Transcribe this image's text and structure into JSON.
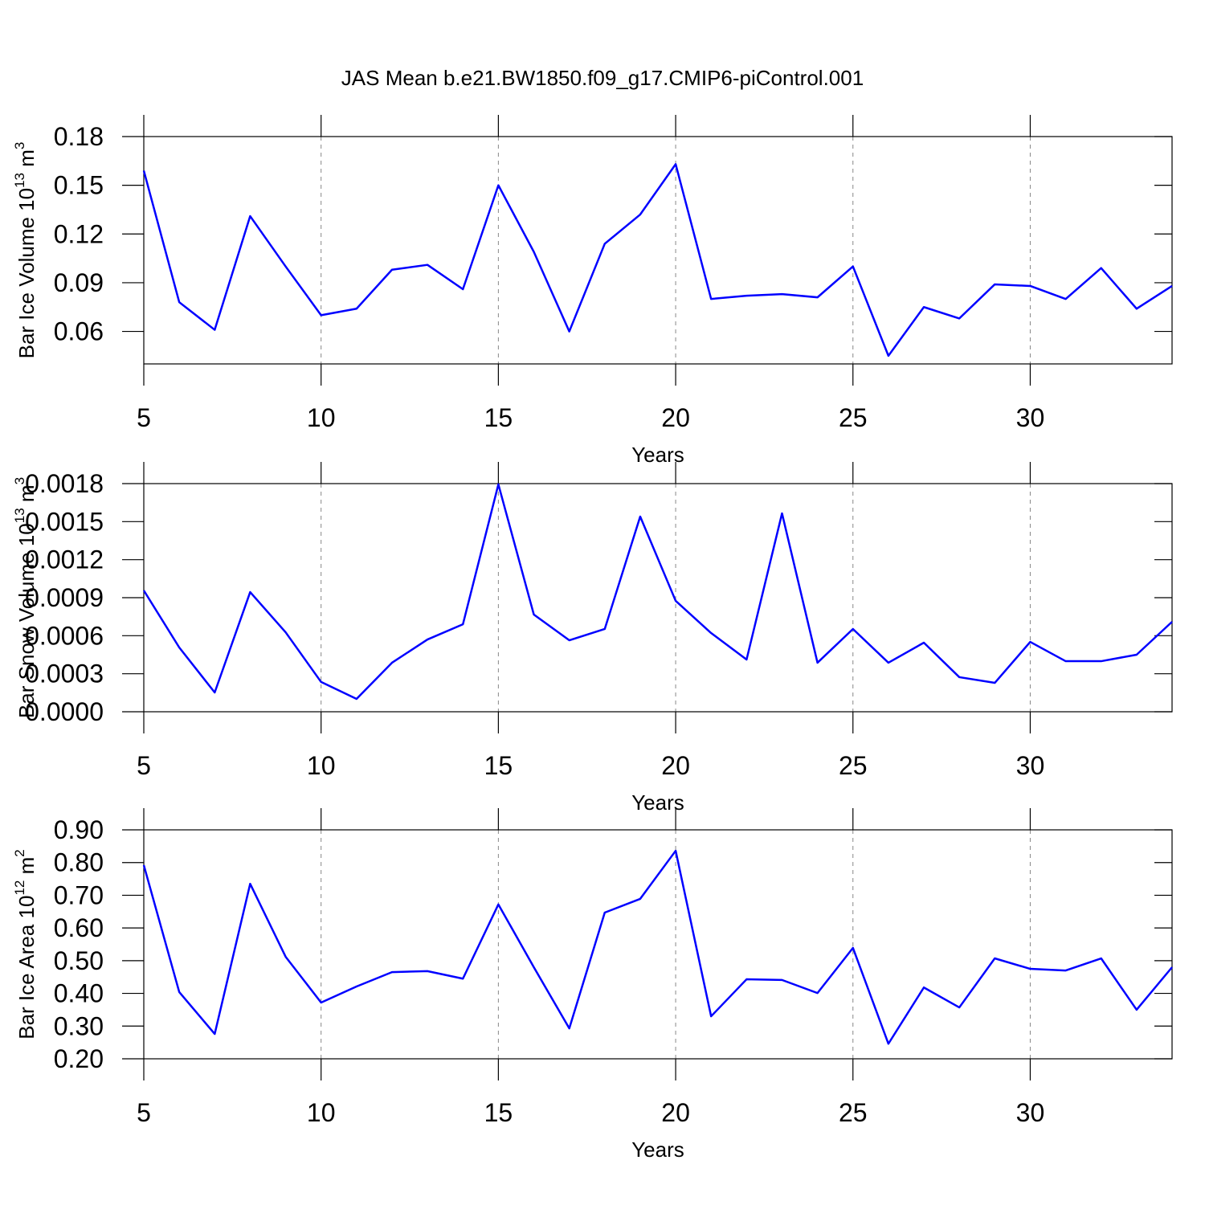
{
  "chart_data": [
    {
      "type": "line",
      "title": "JAS Mean b.e21.BW1850.f09_g17.CMIP6-piControl.001",
      "ylabel": [
        "Bar Ice Volume 10",
        "13",
        " m",
        "3"
      ],
      "xlabel": "Years",
      "x": [
        5,
        6,
        7,
        8,
        9,
        10,
        11,
        12,
        13,
        14,
        15,
        16,
        17,
        18,
        19,
        20,
        21,
        22,
        23,
        24,
        25,
        26,
        27,
        28,
        29,
        30,
        31,
        32,
        33,
        34
      ],
      "values": [
        0.159,
        0.078,
        0.061,
        0.131,
        0.1,
        0.07,
        0.074,
        0.098,
        0.101,
        0.086,
        0.15,
        0.109,
        0.06,
        0.114,
        0.132,
        0.163,
        0.08,
        0.082,
        0.083,
        0.081,
        0.1,
        0.045,
        0.075,
        0.068,
        0.089,
        0.088,
        0.08,
        0.099,
        0.074,
        0.088
      ],
      "color": "#0000ff",
      "xlim": [
        5,
        34
      ],
      "xticks": [
        5,
        10,
        15,
        20,
        25,
        30
      ],
      "ylim": [
        0.04,
        0.18
      ],
      "yticks": [
        0.06,
        0.09,
        0.12,
        0.15,
        0.18
      ],
      "grid": true
    },
    {
      "type": "line",
      "ylabel": [
        "Bar Snow Volume 10",
        "13",
        " m",
        "3"
      ],
      "xlabel": "Years",
      "x": [
        5,
        6,
        7,
        8,
        9,
        10,
        11,
        12,
        13,
        14,
        15,
        16,
        17,
        18,
        19,
        20,
        21,
        22,
        23,
        24,
        25,
        26,
        27,
        28,
        29,
        30,
        31,
        32,
        33,
        34
      ],
      "values": [
        0.000957,
        0.000507,
        0.000152,
        0.000944,
        0.000627,
        0.000235,
        0.000101,
        0.000387,
        0.00057,
        0.00069,
        0.001794,
        0.000767,
        0.000564,
        0.000653,
        0.00154,
        0.000875,
        0.000621,
        0.000412,
        0.001565,
        0.000387,
        0.000653,
        0.000387,
        0.000545,
        0.000273,
        0.000228,
        0.000551,
        0.000399,
        0.000399,
        0.00045,
        0.00071
      ],
      "color": "#0000ff",
      "xlim": [
        5,
        34
      ],
      "xticks": [
        5,
        10,
        15,
        20,
        25,
        30
      ],
      "ylim": [
        0,
        0.0018
      ],
      "yticks": [
        {
          "value": 0,
          "label": "0.0000"
        },
        {
          "value": 0.0003,
          "label": "0.0003"
        },
        {
          "value": 0.0006,
          "label": "0.0006"
        },
        {
          "value": 0.0009,
          "label": "0.0009"
        },
        {
          "value": 0.0012,
          "label": "0.0012"
        },
        {
          "value": 0.0015,
          "label": "0.0015"
        },
        {
          "value": 0.0018,
          "label": "0.0018"
        }
      ],
      "grid": true
    },
    {
      "type": "line",
      "ylabel": [
        "Bar Ice Area 10",
        "12",
        " m",
        "2"
      ],
      "xlabel": "Years",
      "x": [
        5,
        6,
        7,
        8,
        9,
        10,
        11,
        12,
        13,
        14,
        15,
        16,
        17,
        18,
        19,
        20,
        21,
        22,
        23,
        24,
        25,
        26,
        27,
        28,
        29,
        30,
        31,
        32,
        33,
        34
      ],
      "values": [
        0.792,
        0.404,
        0.276,
        0.735,
        0.512,
        0.372,
        0.421,
        0.465,
        0.468,
        0.445,
        0.672,
        0.48,
        0.293,
        0.647,
        0.689,
        0.836,
        0.33,
        0.443,
        0.441,
        0.401,
        0.539,
        0.246,
        0.418,
        0.357,
        0.507,
        0.475,
        0.47,
        0.507,
        0.35,
        0.48
      ],
      "color": "#0000ff",
      "xlim": [
        5,
        34
      ],
      "xticks": [
        5,
        10,
        15,
        20,
        25,
        30
      ],
      "ylim": [
        0.2,
        0.9
      ],
      "yticks": [
        {
          "value": 0.2,
          "label": "0.20"
        },
        {
          "value": 0.3,
          "label": "0.30"
        },
        {
          "value": 0.4,
          "label": "0.40"
        },
        {
          "value": 0.5,
          "label": "0.50"
        },
        {
          "value": 0.6,
          "label": "0.60"
        },
        {
          "value": 0.7,
          "label": "0.70"
        },
        {
          "value": 0.8,
          "label": "0.80"
        },
        {
          "value": 0.9,
          "label": "0.90"
        }
      ],
      "grid": true
    }
  ]
}
